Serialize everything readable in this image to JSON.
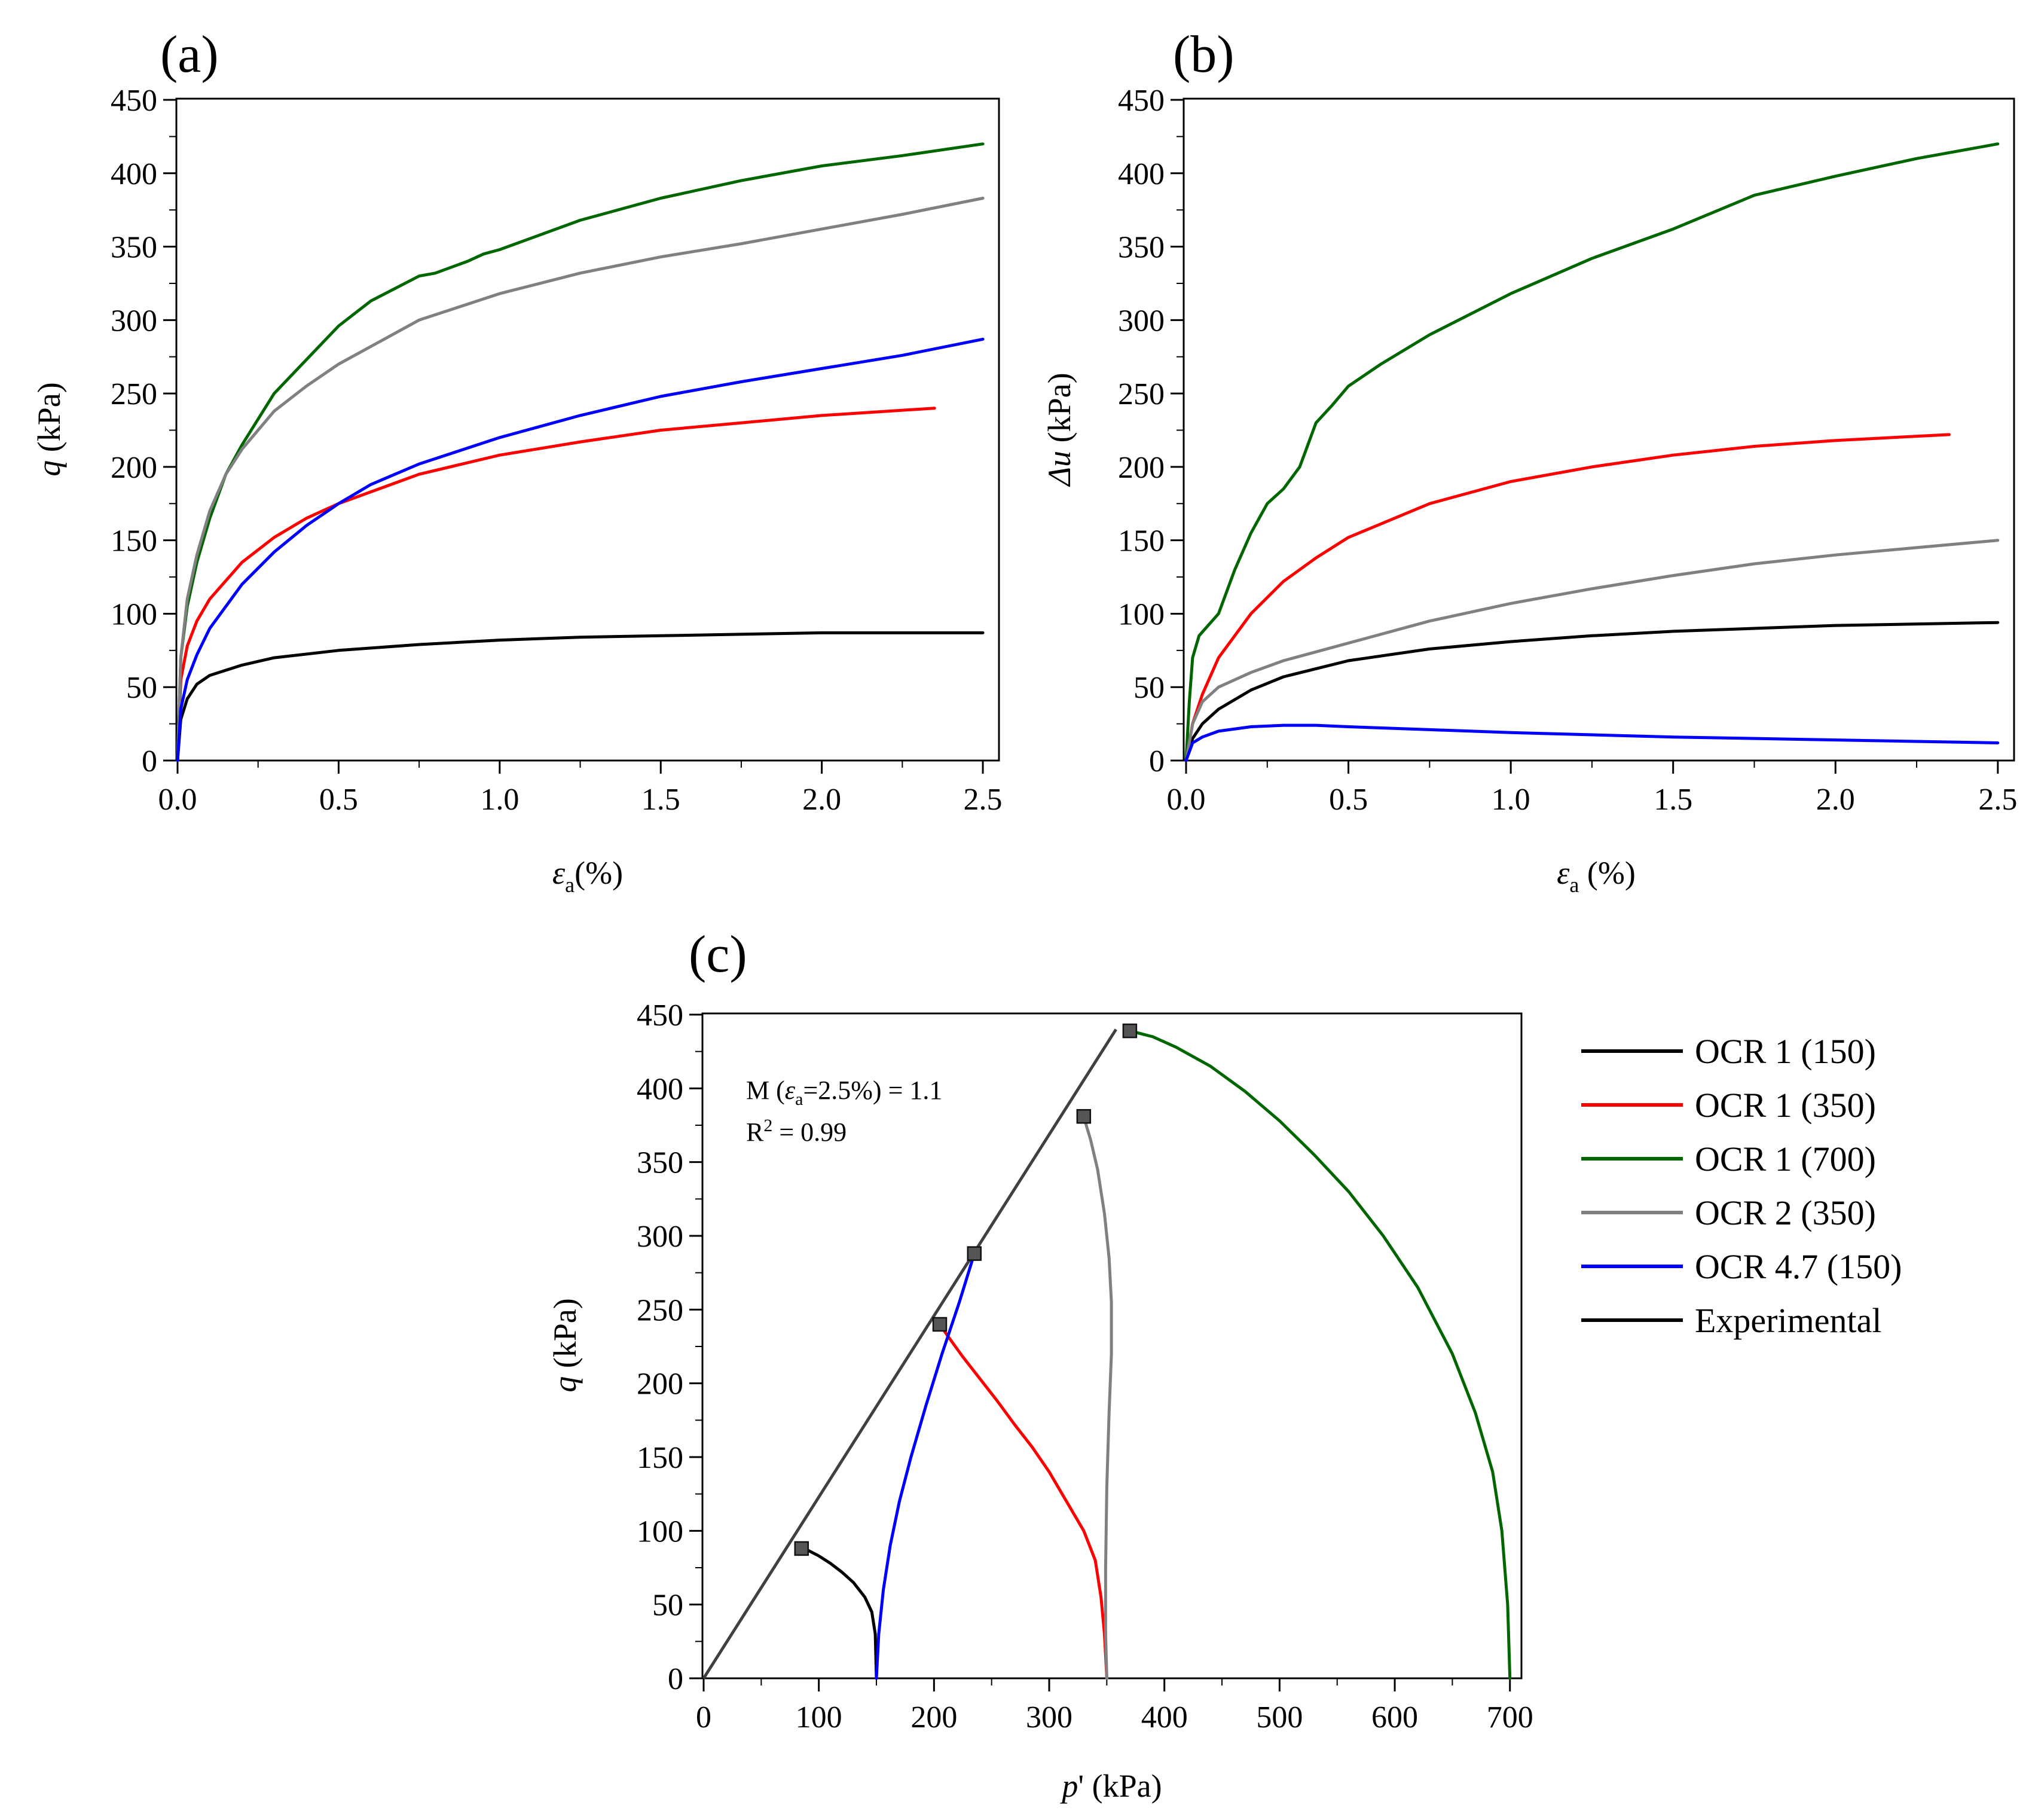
{
  "figure": {
    "legend": [
      {
        "label": "OCR 1 (150)",
        "color": "#000000"
      },
      {
        "label": "OCR 1 (350)",
        "color": "#ff0000"
      },
      {
        "label": "OCR 1 (700)",
        "color": "#006600"
      },
      {
        "label": "OCR 2 (350)",
        "color": "#808080"
      },
      {
        "label": "Experimental",
        "color": "#000000"
      }
    ],
    "legend_ocr47": "OCR 4.7 (150)",
    "legend_ocr47_color": "#0000ff"
  },
  "chart_data": [
    {
      "id": "a",
      "type": "line",
      "panel_label": "(a)",
      "ylabel_sym": "q",
      "ylabel_unit": " (kPa)",
      "xlabel_sym": "ε",
      "xlabel_sub": "a",
      "xlabel_unit": "(%)",
      "xlim": [
        0,
        2.55
      ],
      "ylim": [
        0,
        450
      ],
      "xticks": [
        0,
        0.5,
        1.0,
        1.5,
        2.0,
        2.5
      ],
      "xtick_labels": [
        "0.0",
        "0.5",
        "1.0",
        "1.5",
        "2.0",
        "2.5"
      ],
      "yticks": [
        0,
        50,
        100,
        150,
        200,
        250,
        300,
        350,
        400,
        450
      ],
      "ytick_labels": [
        "0",
        "50",
        "100",
        "150",
        "200",
        "250",
        "300",
        "350",
        "400",
        "450"
      ],
      "series": [
        {
          "name": "OCR 1 (150)",
          "color": "#000000",
          "x": [
            0,
            0.01,
            0.03,
            0.06,
            0.1,
            0.2,
            0.3,
            0.5,
            0.75,
            1.0,
            1.25,
            1.5,
            2.0,
            2.5
          ],
          "y": [
            0,
            28,
            42,
            52,
            58,
            65,
            70,
            75,
            79,
            82,
            84,
            85,
            87,
            87
          ]
        },
        {
          "name": "OCR 1 (350)",
          "color": "#ff0000",
          "x": [
            0,
            0.01,
            0.03,
            0.06,
            0.1,
            0.2,
            0.3,
            0.4,
            0.5,
            0.75,
            1.0,
            1.25,
            1.5,
            1.75,
            2.0,
            2.35
          ],
          "y": [
            0,
            55,
            78,
            95,
            110,
            135,
            152,
            165,
            175,
            195,
            208,
            217,
            225,
            230,
            235,
            240
          ]
        },
        {
          "name": "OCR 1 (700)",
          "color": "#006600",
          "x": [
            0,
            0.01,
            0.03,
            0.06,
            0.1,
            0.15,
            0.2,
            0.3,
            0.4,
            0.5,
            0.6,
            0.75,
            0.8,
            0.9,
            0.95,
            1.0,
            1.25,
            1.5,
            1.75,
            2.0,
            2.25,
            2.5
          ],
          "y": [
            0,
            70,
            105,
            135,
            165,
            195,
            215,
            250,
            273,
            296,
            313,
            330,
            332,
            340,
            345,
            348,
            368,
            383,
            395,
            405,
            412,
            420
          ]
        },
        {
          "name": "OCR 2 (350)",
          "color": "#808080",
          "x": [
            0,
            0.01,
            0.03,
            0.06,
            0.1,
            0.15,
            0.2,
            0.3,
            0.4,
            0.5,
            0.75,
            1.0,
            1.25,
            1.5,
            1.75,
            2.0,
            2.25,
            2.5
          ],
          "y": [
            0,
            70,
            110,
            140,
            170,
            195,
            212,
            238,
            255,
            270,
            300,
            318,
            332,
            343,
            352,
            362,
            372,
            383
          ]
        },
        {
          "name": "OCR 4.7 (150)",
          "color": "#0000ff",
          "x": [
            0,
            0.01,
            0.03,
            0.06,
            0.1,
            0.2,
            0.3,
            0.4,
            0.5,
            0.6,
            0.75,
            1.0,
            1.25,
            1.5,
            1.75,
            2.0,
            2.25,
            2.5
          ],
          "y": [
            0,
            35,
            55,
            72,
            90,
            120,
            142,
            160,
            175,
            188,
            202,
            220,
            235,
            248,
            258,
            267,
            276,
            287
          ]
        }
      ]
    },
    {
      "id": "b",
      "type": "line",
      "panel_label": "(b)",
      "ylabel_sym": "Δu",
      "ylabel_unit": " (kPa)",
      "xlabel_sym": "ε",
      "xlabel_sub": "a",
      "xlabel_unit": " (%)",
      "xlim": [
        0,
        2.55
      ],
      "ylim": [
        0,
        450
      ],
      "xticks": [
        0,
        0.5,
        1.0,
        1.5,
        2.0,
        2.5
      ],
      "xtick_labels": [
        "0.0",
        "0.5",
        "1.0",
        "1.5",
        "2.0",
        "2.5"
      ],
      "yticks": [
        0,
        50,
        100,
        150,
        200,
        250,
        300,
        350,
        400,
        450
      ],
      "ytick_labels": [
        "0",
        "50",
        "100",
        "150",
        "200",
        "250",
        "300",
        "350",
        "400",
        "450"
      ],
      "series": [
        {
          "name": "OCR 1 (150)",
          "color": "#000000",
          "x": [
            0,
            0.02,
            0.05,
            0.1,
            0.2,
            0.3,
            0.5,
            0.75,
            1.0,
            1.25,
            1.5,
            2.0,
            2.5
          ],
          "y": [
            0,
            15,
            25,
            35,
            48,
            57,
            68,
            76,
            81,
            85,
            88,
            92,
            94
          ]
        },
        {
          "name": "OCR 1 (350)",
          "color": "#ff0000",
          "x": [
            0,
            0.02,
            0.05,
            0.1,
            0.2,
            0.3,
            0.4,
            0.5,
            0.75,
            1.0,
            1.25,
            1.5,
            1.75,
            2.0,
            2.35
          ],
          "y": [
            0,
            25,
            45,
            70,
            100,
            122,
            138,
            152,
            175,
            190,
            200,
            208,
            214,
            218,
            222
          ]
        },
        {
          "name": "OCR 1 (700)",
          "color": "#006600",
          "x": [
            0,
            0.01,
            0.02,
            0.04,
            0.1,
            0.15,
            0.2,
            0.25,
            0.3,
            0.35,
            0.4,
            0.45,
            0.5,
            0.6,
            0.75,
            1.0,
            1.25,
            1.5,
            1.75,
            2.0,
            2.25,
            2.5
          ],
          "y": [
            0,
            40,
            70,
            85,
            100,
            130,
            155,
            175,
            185,
            200,
            230,
            242,
            255,
            270,
            290,
            318,
            342,
            362,
            385,
            398,
            410,
            420
          ]
        },
        {
          "name": "OCR 2 (350)",
          "color": "#808080",
          "x": [
            0,
            0.02,
            0.05,
            0.1,
            0.2,
            0.3,
            0.5,
            0.75,
            1.0,
            1.25,
            1.5,
            1.75,
            2.0,
            2.25,
            2.5
          ],
          "y": [
            0,
            25,
            40,
            50,
            60,
            68,
            80,
            95,
            107,
            117,
            126,
            134,
            140,
            145,
            150
          ]
        },
        {
          "name": "OCR 4.7 (150)",
          "color": "#0000ff",
          "x": [
            0,
            0.02,
            0.05,
            0.1,
            0.2,
            0.3,
            0.4,
            0.5,
            0.75,
            1.0,
            1.5,
            2.0,
            2.5
          ],
          "y": [
            0,
            12,
            16,
            20,
            23,
            24,
            24,
            23,
            21,
            19,
            16,
            14,
            12
          ]
        }
      ]
    },
    {
      "id": "c",
      "type": "line",
      "panel_label": "(c)",
      "ylabel_sym": "q",
      "ylabel_unit": " (kPa)",
      "xlabel_sym": "p",
      "xlabel_unit": "' (kPa)",
      "xlim": [
        0,
        710
      ],
      "ylim": [
        0,
        450
      ],
      "xticks": [
        0,
        100,
        200,
        300,
        400,
        500,
        600,
        700
      ],
      "xtick_labels": [
        "0",
        "100",
        "200",
        "300",
        "400",
        "500",
        "600",
        "700"
      ],
      "yticks": [
        0,
        50,
        100,
        150,
        200,
        250,
        300,
        350,
        400,
        450
      ],
      "ytick_labels": [
        "0",
        "50",
        "100",
        "150",
        "200",
        "250",
        "300",
        "350",
        "400",
        "450"
      ],
      "annotation": {
        "line1_pre": "M (",
        "line1_sym": "ε",
        "line1_sub": "a",
        "line1_post": "=2.5%) = 1.1",
        "line2_pre": "R",
        "line2_sup": "2",
        "line2_post": " = 0.99"
      },
      "csl": {
        "name": "Experimental",
        "color": "#404040",
        "x": [
          0,
          358
        ],
        "y": [
          0,
          440
        ]
      },
      "failure_points": {
        "x": [
          85,
          205,
          235,
          330,
          370
        ],
        "y": [
          88,
          240,
          288,
          381,
          439
        ]
      },
      "series": [
        {
          "name": "OCR 1 (150)",
          "color": "#000000",
          "x": [
            150,
            149,
            146,
            140,
            130,
            120,
            110,
            100,
            90,
            85
          ],
          "y": [
            0,
            30,
            45,
            55,
            65,
            72,
            78,
            83,
            87,
            88
          ]
        },
        {
          "name": "OCR 1 (350)",
          "color": "#ff0000",
          "x": [
            350,
            348,
            345,
            340,
            330,
            315,
            300,
            285,
            270,
            255,
            240,
            225,
            212,
            205
          ],
          "y": [
            0,
            30,
            55,
            80,
            100,
            120,
            140,
            157,
            172,
            188,
            203,
            218,
            232,
            240
          ]
        },
        {
          "name": "OCR 1 (700)",
          "color": "#006600",
          "x": [
            700,
            698,
            693,
            685,
            670,
            650,
            620,
            590,
            560,
            530,
            500,
            470,
            440,
            410,
            390,
            370
          ],
          "y": [
            0,
            50,
            100,
            140,
            180,
            220,
            265,
            300,
            330,
            355,
            378,
            398,
            415,
            428,
            435,
            439
          ]
        },
        {
          "name": "OCR 2 (350)",
          "color": "#808080",
          "x": [
            350,
            349,
            349,
            350,
            352,
            354,
            354,
            352,
            348,
            342,
            336,
            331,
            330
          ],
          "y": [
            0,
            30,
            75,
            130,
            180,
            220,
            255,
            285,
            315,
            345,
            365,
            378,
            381
          ]
        },
        {
          "name": "OCR 4.7 (150)",
          "color": "#0000ff",
          "x": [
            150,
            152,
            156,
            162,
            170,
            180,
            193,
            207,
            222,
            235
          ],
          "y": [
            0,
            30,
            60,
            90,
            120,
            150,
            185,
            220,
            255,
            288
          ]
        }
      ]
    }
  ]
}
